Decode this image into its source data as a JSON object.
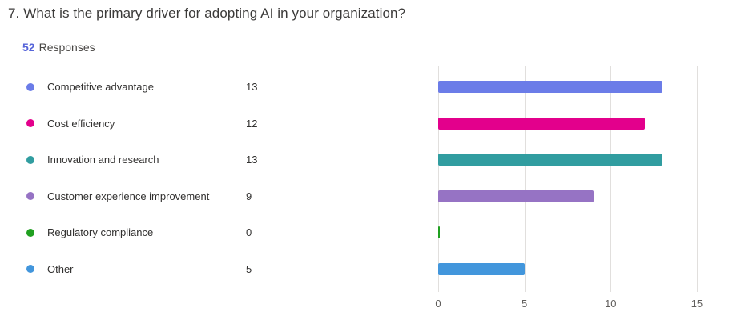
{
  "question": {
    "title": "7. What is the primary driver for adopting AI in your organization?",
    "response_count": "52",
    "response_label": "Responses"
  },
  "colors": {
    "accent_count": "#5664d9",
    "title_text": "#3b3a39",
    "body_text": "#323130",
    "axis_text": "#605e5c",
    "gridline": "#e1dfdd",
    "background": "#ffffff"
  },
  "chart_data": {
    "type": "bar",
    "orientation": "horizontal",
    "title": "",
    "xlabel": "",
    "ylabel": "",
    "categories": [
      "Competitive advantage",
      "Cost efficiency",
      "Innovation and research",
      "Customer experience improvement",
      "Regulatory compliance",
      "Other"
    ],
    "values": [
      13,
      12,
      13,
      9,
      0,
      5
    ],
    "colors": [
      "#6b7ce8",
      "#e3008c",
      "#319da0",
      "#9673c4",
      "#20a020",
      "#4296dc"
    ],
    "xticks": [
      0,
      5,
      10,
      15
    ],
    "xlim": [
      0,
      16.2
    ],
    "grid": true,
    "legend_position": "left"
  }
}
